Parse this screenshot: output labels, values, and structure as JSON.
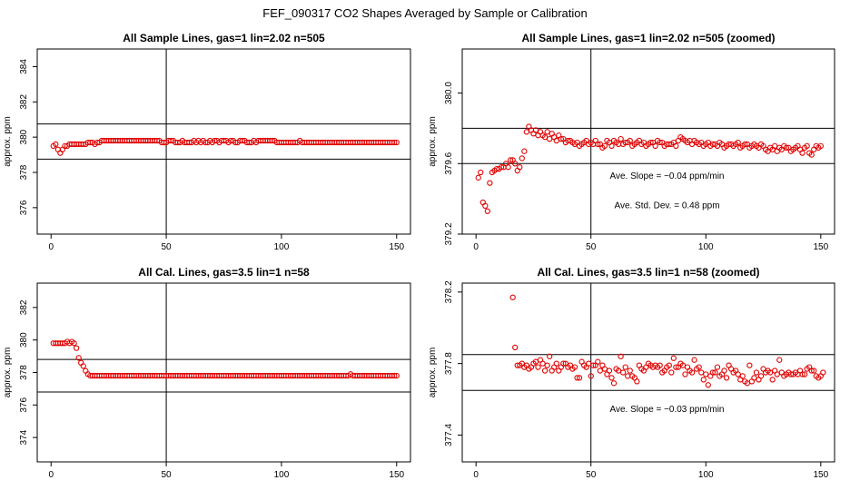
{
  "figure_title": "FEF_090317  CO2 Shapes Averaged by Sample or Calibration",
  "colors": {
    "points": "#e00000",
    "lines": "#000000"
  },
  "chart_data": [
    {
      "type": "scatter",
      "title": "All Sample Lines, gas=1 lin=2.02 n=505",
      "xlabel": "",
      "ylabel": "approx. ppm",
      "xlim": [
        0,
        150
      ],
      "ylim": [
        374.5,
        385
      ],
      "xticks": [
        0,
        50,
        100,
        150
      ],
      "yticks": [
        376,
        378,
        380,
        382,
        384
      ],
      "vline": 50,
      "hlines": [
        378.75,
        380.75
      ],
      "annotations": [],
      "x_start": 1,
      "x_step": 1,
      "values": [
        379.5,
        379.6,
        379.3,
        379.1,
        379.3,
        379.5,
        379.5,
        379.6,
        379.6,
        379.6,
        379.6,
        379.6,
        379.6,
        379.6,
        379.6,
        379.7,
        379.7,
        379.7,
        379.6,
        379.7,
        379.7,
        379.8,
        379.8,
        379.8,
        379.8,
        379.8,
        379.8,
        379.8,
        379.8,
        379.8,
        379.8,
        379.8,
        379.8,
        379.8,
        379.8,
        379.8,
        379.8,
        379.8,
        379.8,
        379.8,
        379.8,
        379.8,
        379.8,
        379.8,
        379.8,
        379.8,
        379.8,
        379.7,
        379.7,
        379.7,
        379.8,
        379.8,
        379.8,
        379.7,
        379.7,
        379.7,
        379.8,
        379.7,
        379.7,
        379.7,
        379.7,
        379.8,
        379.7,
        379.8,
        379.7,
        379.8,
        379.7,
        379.7,
        379.8,
        379.7,
        379.8,
        379.8,
        379.7,
        379.8,
        379.8,
        379.8,
        379.7,
        379.8,
        379.8,
        379.7,
        379.7,
        379.8,
        379.8,
        379.8,
        379.7,
        379.7,
        379.7,
        379.8,
        379.7,
        379.8,
        379.8,
        379.8,
        379.8,
        379.8,
        379.8,
        379.8,
        379.8,
        379.7,
        379.7,
        379.7,
        379.7,
        379.7,
        379.7,
        379.7,
        379.7,
        379.7,
        379.7,
        379.8,
        379.7,
        379.7,
        379.7,
        379.7,
        379.7,
        379.7,
        379.7,
        379.7,
        379.7,
        379.7,
        379.7,
        379.7,
        379.7,
        379.7,
        379.7,
        379.7,
        379.7,
        379.7,
        379.7,
        379.7,
        379.7,
        379.7,
        379.7,
        379.7,
        379.7,
        379.7,
        379.7,
        379.7,
        379.7,
        379.7,
        379.7,
        379.7,
        379.7,
        379.7,
        379.7,
        379.7,
        379.7,
        379.7,
        379.7,
        379.7,
        379.7,
        379.7
      ]
    },
    {
      "type": "scatter",
      "title": "All Sample Lines, gas=1 lin=2.02 n=505 (zoomed)",
      "xlabel": "",
      "ylabel": "approx. ppm",
      "xlim": [
        0,
        150
      ],
      "ylim": [
        379.2,
        380.25
      ],
      "xticks": [
        0,
        50,
        100,
        150
      ],
      "yticks": [
        379.2,
        379.6,
        380.0
      ],
      "vline": 50,
      "hlines": [
        379.6,
        379.8
      ],
      "annotations": [
        "Ave. Slope =  −0.04  ppm/min",
        "Ave. Std. Dev. =  0.48  ppm"
      ],
      "x_start": 1,
      "x_step": 1,
      "values": [
        379.52,
        379.55,
        379.38,
        379.36,
        379.33,
        379.49,
        379.55,
        379.56,
        379.57,
        379.57,
        379.58,
        379.58,
        379.6,
        379.58,
        379.62,
        379.62,
        379.6,
        379.56,
        379.58,
        379.63,
        379.67,
        379.78,
        379.81,
        379.79,
        379.77,
        379.79,
        379.76,
        379.78,
        379.76,
        379.75,
        379.78,
        379.74,
        379.77,
        379.75,
        379.73,
        379.76,
        379.74,
        379.74,
        379.72,
        379.73,
        379.73,
        379.72,
        379.71,
        379.72,
        379.7,
        379.71,
        379.72,
        379.73,
        379.71,
        379.72,
        379.71,
        379.73,
        379.71,
        379.71,
        379.69,
        379.7,
        379.73,
        379.72,
        379.7,
        379.73,
        379.72,
        379.71,
        379.74,
        379.71,
        379.72,
        379.72,
        379.73,
        379.7,
        379.71,
        379.72,
        379.73,
        379.71,
        379.72,
        379.7,
        379.71,
        379.72,
        379.72,
        379.7,
        379.73,
        379.72,
        379.72,
        379.7,
        379.71,
        379.71,
        379.71,
        379.72,
        379.7,
        379.73,
        379.75,
        379.74,
        379.73,
        379.72,
        379.73,
        379.71,
        379.73,
        379.72,
        379.71,
        379.72,
        379.7,
        379.71,
        379.72,
        379.7,
        379.71,
        379.71,
        379.7,
        379.72,
        379.71,
        379.69,
        379.7,
        379.71,
        379.71,
        379.7,
        379.71,
        379.72,
        379.69,
        379.7,
        379.71,
        379.71,
        379.69,
        379.7,
        379.71,
        379.7,
        379.69,
        379.71,
        379.7,
        379.68,
        379.67,
        379.69,
        379.68,
        379.7,
        379.67,
        379.69,
        379.68,
        379.7,
        379.69,
        379.69,
        379.67,
        379.68,
        379.69,
        379.7,
        379.68,
        379.66,
        379.69,
        379.7,
        379.66,
        379.65,
        379.68,
        379.7,
        379.69,
        379.7
      ]
    },
    {
      "type": "scatter",
      "title": "All Cal. Lines, gas=3.5 lin=1 n=58",
      "xlabel": "",
      "ylabel": "approx. ppm",
      "xlim": [
        0,
        150
      ],
      "ylim": [
        372.5,
        383.5
      ],
      "xticks": [
        0,
        50,
        100,
        150
      ],
      "yticks": [
        374,
        376,
        378,
        380,
        382
      ],
      "vline": 50,
      "hlines": [
        376.8,
        378.8
      ],
      "annotations": [],
      "x_start": 1,
      "x_step": 1,
      "values": [
        379.8,
        379.8,
        379.8,
        379.8,
        379.8,
        379.8,
        379.9,
        379.8,
        379.9,
        379.8,
        379.5,
        378.9,
        378.6,
        378.4,
        378.1,
        377.9,
        377.8,
        377.8,
        377.8,
        377.8,
        377.8,
        377.8,
        377.8,
        377.8,
        377.8,
        377.8,
        377.8,
        377.8,
        377.8,
        377.8,
        377.8,
        377.8,
        377.8,
        377.8,
        377.8,
        377.8,
        377.8,
        377.8,
        377.8,
        377.8,
        377.8,
        377.8,
        377.8,
        377.8,
        377.8,
        377.8,
        377.8,
        377.8,
        377.8,
        377.8,
        377.8,
        377.8,
        377.8,
        377.8,
        377.8,
        377.8,
        377.8,
        377.8,
        377.8,
        377.8,
        377.8,
        377.8,
        377.8,
        377.8,
        377.8,
        377.8,
        377.8,
        377.8,
        377.8,
        377.8,
        377.8,
        377.8,
        377.8,
        377.8,
        377.8,
        377.8,
        377.8,
        377.8,
        377.8,
        377.8,
        377.8,
        377.8,
        377.8,
        377.8,
        377.8,
        377.8,
        377.8,
        377.8,
        377.8,
        377.8,
        377.8,
        377.8,
        377.8,
        377.8,
        377.8,
        377.8,
        377.8,
        377.8,
        377.8,
        377.8,
        377.8,
        377.8,
        377.8,
        377.8,
        377.8,
        377.8,
        377.8,
        377.8,
        377.8,
        377.8,
        377.8,
        377.8,
        377.8,
        377.8,
        377.8,
        377.8,
        377.8,
        377.8,
        377.8,
        377.8,
        377.8,
        377.8,
        377.8,
        377.8,
        377.8,
        377.8,
        377.8,
        377.8,
        377.8,
        377.9,
        377.8,
        377.8,
        377.8,
        377.8,
        377.8,
        377.8,
        377.8,
        377.8,
        377.8,
        377.8,
        377.8,
        377.8,
        377.8,
        377.8,
        377.8,
        377.8,
        377.8,
        377.8,
        377.8,
        377.8
      ]
    },
    {
      "type": "scatter",
      "title": "All Cal. Lines, gas=3.5 lin=1 n=58 (zoomed)",
      "xlabel": "",
      "ylabel": "approx. ppm",
      "xlim": [
        0,
        150
      ],
      "ylim": [
        377.25,
        378.25
      ],
      "xticks": [
        0,
        50,
        100,
        150
      ],
      "yticks": [
        377.4,
        377.8,
        378.2
      ],
      "vline": 50,
      "hlines": [
        377.65,
        377.85
      ],
      "annotations": [
        "Ave. Slope =  −0.03  ppm/min"
      ],
      "x_start": 16,
      "x_step": 1,
      "values": [
        378.17,
        377.89,
        377.79,
        377.79,
        377.8,
        377.78,
        377.79,
        377.77,
        377.78,
        377.8,
        377.81,
        377.78,
        377.82,
        377.8,
        377.76,
        377.79,
        377.84,
        377.76,
        377.78,
        377.8,
        377.76,
        377.78,
        377.8,
        377.8,
        377.78,
        377.79,
        377.77,
        377.78,
        377.72,
        377.72,
        377.81,
        377.79,
        377.78,
        377.8,
        377.73,
        377.79,
        377.79,
        377.81,
        377.76,
        377.79,
        377.77,
        377.74,
        377.76,
        377.72,
        377.69,
        377.77,
        377.76,
        377.84,
        377.75,
        377.78,
        377.73,
        377.76,
        377.73,
        377.72,
        377.7,
        377.79,
        377.77,
        377.76,
        377.78,
        377.8,
        377.79,
        377.78,
        377.79,
        377.78,
        377.79,
        377.75,
        377.76,
        377.78,
        377.79,
        377.75,
        377.83,
        377.78,
        377.78,
        377.8,
        377.79,
        377.74,
        377.78,
        377.76,
        377.75,
        377.82,
        377.77,
        377.78,
        377.75,
        377.71,
        377.74,
        377.68,
        377.73,
        377.75,
        377.75,
        377.78,
        377.73,
        377.74,
        377.76,
        377.72,
        377.79,
        377.77,
        377.75,
        377.76,
        377.74,
        377.71,
        377.73,
        377.7,
        377.69,
        377.79,
        377.7,
        377.72,
        377.75,
        377.71,
        377.73,
        377.77,
        377.75,
        377.76,
        377.75,
        377.71,
        377.76,
        377.74,
        377.82,
        377.75,
        377.73,
        377.74,
        377.75,
        377.74,
        377.74,
        377.75,
        377.74,
        377.76,
        377.74,
        377.74,
        377.77,
        377.78,
        377.76,
        377.76,
        377.73,
        377.72,
        377.73,
        377.75
      ]
    }
  ]
}
